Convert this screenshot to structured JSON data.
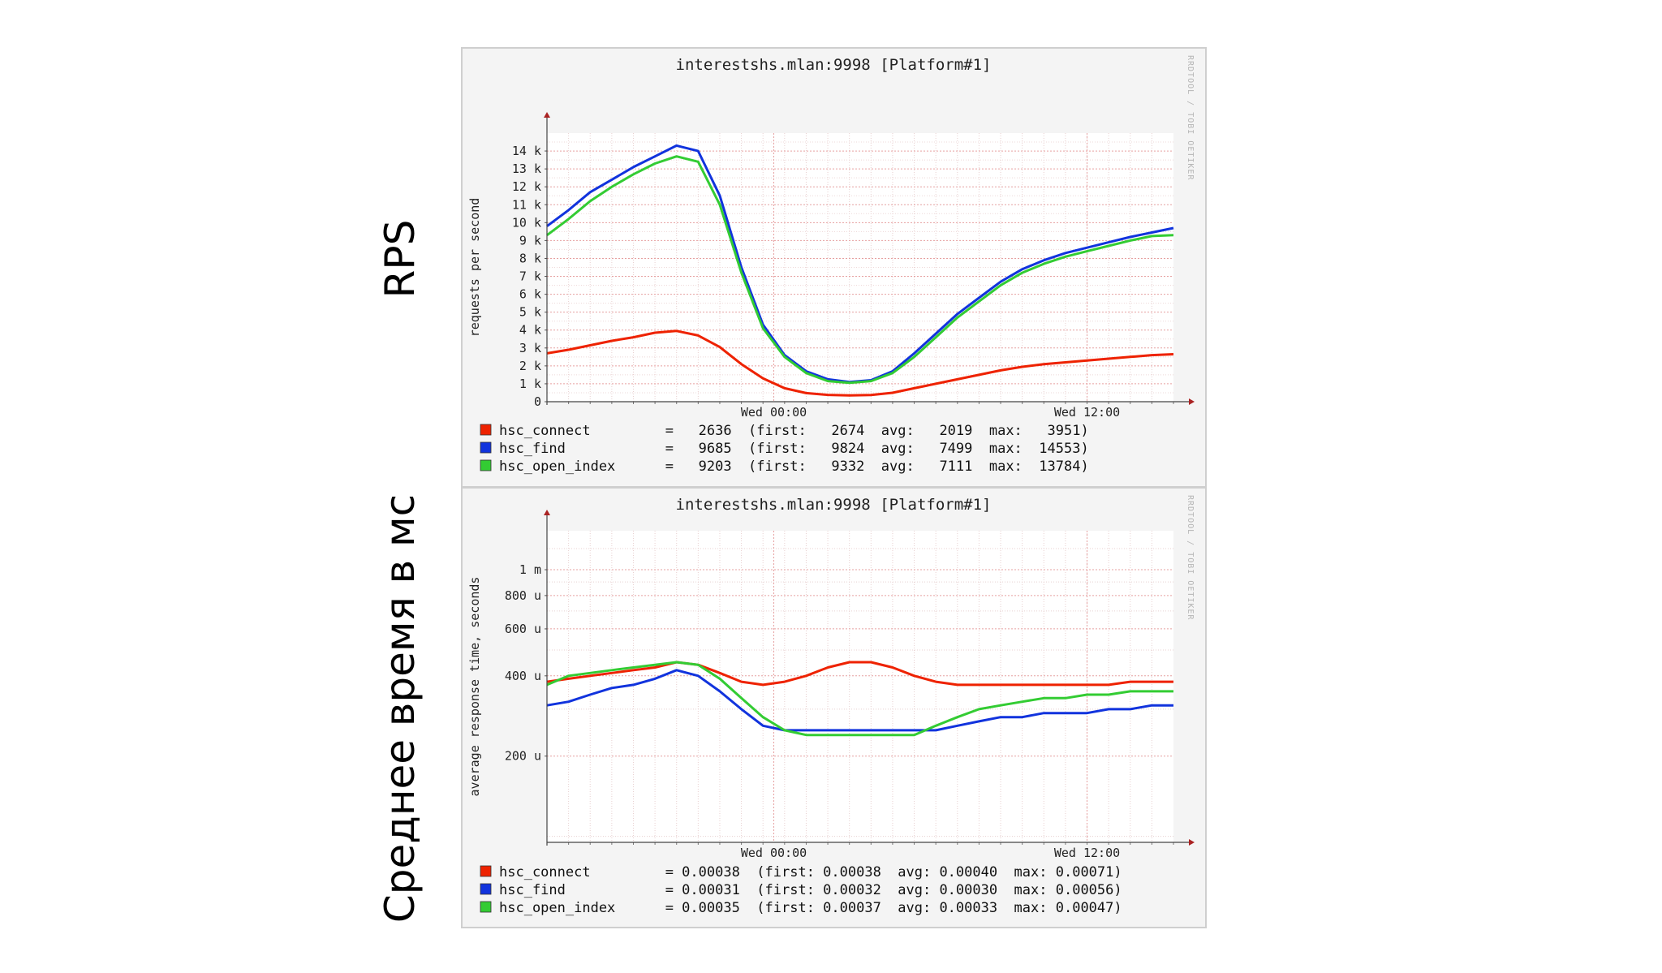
{
  "side_labels": {
    "top": "RPS",
    "bottom": "Среднее время в мс"
  },
  "watermark": "RRDTOOL / TOBI OETIKER",
  "colors": {
    "hsc_connect": "#ee2200",
    "hsc_find": "#1133dd",
    "hsc_open_index": "#33cc33"
  },
  "chart_data": [
    {
      "type": "line",
      "title": "interestshs.mlan:9998 [Platform#1]",
      "ylabel": "requests per second",
      "ylim": [
        0,
        15000
      ],
      "xlim": [
        0,
        29
      ],
      "ytick_values": [
        0,
        1000,
        2000,
        3000,
        4000,
        5000,
        6000,
        7000,
        8000,
        9000,
        10000,
        11000,
        12000,
        13000,
        14000
      ],
      "ytick_labels": [
        "0",
        "1 k",
        "2 k",
        "3 k",
        "4 k",
        "5 k",
        "6 k",
        "7 k",
        "8 k",
        "9 k",
        "10 k",
        "11 k",
        "12 k",
        "13 k",
        "14 k"
      ],
      "xtick_values": [
        10.5,
        25
      ],
      "xtick_labels": [
        "Wed 00:00",
        "Wed 12:00"
      ],
      "x": [
        0,
        1,
        2,
        3,
        4,
        5,
        6,
        7,
        8,
        9,
        10,
        11,
        12,
        13,
        14,
        15,
        16,
        17,
        18,
        19,
        20,
        21,
        22,
        23,
        24,
        25,
        26,
        27,
        28,
        29
      ],
      "series": [
        {
          "name": "hsc_connect",
          "color": "#ee2200",
          "values": [
            2700,
            2900,
            3150,
            3400,
            3600,
            3850,
            3950,
            3700,
            3050,
            2100,
            1300,
            750,
            480,
            380,
            350,
            370,
            500,
            750,
            1000,
            1250,
            1500,
            1750,
            1950,
            2100,
            2200,
            2300,
            2400,
            2500,
            2600,
            2650
          ],
          "legend": {
            "name": "hsc_connect",
            "current": "2636",
            "first": "2674",
            "avg": "2019",
            "max": "3951"
          }
        },
        {
          "name": "hsc_find",
          "color": "#1133dd",
          "values": [
            9800,
            10700,
            11700,
            12400,
            13100,
            13700,
            14300,
            14000,
            11500,
            7500,
            4300,
            2600,
            1700,
            1250,
            1100,
            1200,
            1700,
            2700,
            3800,
            4900,
            5800,
            6700,
            7400,
            7900,
            8300,
            8600,
            8900,
            9200,
            9450,
            9700
          ],
          "legend": {
            "name": "hsc_find",
            "current": "9685",
            "first": "9824",
            "avg": "7499",
            "max": "14553"
          }
        },
        {
          "name": "hsc_open_index",
          "color": "#33cc33",
          "values": [
            9300,
            10200,
            11200,
            12000,
            12700,
            13300,
            13700,
            13400,
            11000,
            7200,
            4100,
            2500,
            1600,
            1150,
            1050,
            1150,
            1600,
            2500,
            3600,
            4700,
            5600,
            6500,
            7200,
            7700,
            8100,
            8400,
            8700,
            9000,
            9250,
            9300
          ],
          "legend": {
            "name": "hsc_open_index",
            "current": "9203",
            "first": "9332",
            "avg": "7111",
            "max": "13784"
          }
        }
      ]
    },
    {
      "type": "line",
      "title": "interestshs.mlan:9998 [Platform#1]",
      "ylabel": "average response time, seconds",
      "ylim": [
        9.5e-05,
        0.0014
      ],
      "yscale": "log",
      "xlim": [
        0,
        29
      ],
      "ytick_values": [
        0.0002,
        0.0004,
        0.0006,
        0.0008,
        0.001
      ],
      "ytick_labels": [
        "200 u",
        "400 u",
        "600 u",
        "800 u",
        "1 m"
      ],
      "xtick_values": [
        10.5,
        25
      ],
      "xtick_labels": [
        "Wed 00:00",
        "Wed 12:00"
      ],
      "x": [
        0,
        1,
        2,
        3,
        4,
        5,
        6,
        7,
        8,
        9,
        10,
        11,
        12,
        13,
        14,
        15,
        16,
        17,
        18,
        19,
        20,
        21,
        22,
        23,
        24,
        25,
        26,
        27,
        28,
        29
      ],
      "series": [
        {
          "name": "hsc_connect",
          "color": "#ee2200",
          "values": [
            0.00038,
            0.00039,
            0.0004,
            0.00041,
            0.00042,
            0.00043,
            0.00045,
            0.00044,
            0.00041,
            0.00038,
            0.00037,
            0.00038,
            0.0004,
            0.00043,
            0.00045,
            0.00045,
            0.00043,
            0.0004,
            0.00038,
            0.00037,
            0.00037,
            0.00037,
            0.00037,
            0.00037,
            0.00037,
            0.00037,
            0.00037,
            0.00038,
            0.00038,
            0.00038
          ],
          "legend": {
            "name": "hsc_connect",
            "current": "0.00038",
            "first": "0.00038",
            "avg": "0.00040",
            "max": "0.00071"
          }
        },
        {
          "name": "hsc_find",
          "color": "#1133dd",
          "values": [
            0.00031,
            0.00032,
            0.00034,
            0.00036,
            0.00037,
            0.00039,
            0.00042,
            0.0004,
            0.00035,
            0.0003,
            0.00026,
            0.00025,
            0.00025,
            0.00025,
            0.00025,
            0.00025,
            0.00025,
            0.00025,
            0.00025,
            0.00026,
            0.00027,
            0.00028,
            0.00028,
            0.00029,
            0.00029,
            0.00029,
            0.0003,
            0.0003,
            0.00031,
            0.00031
          ],
          "legend": {
            "name": "hsc_find",
            "current": "0.00031",
            "first": "0.00032",
            "avg": "0.00030",
            "max": "0.00056"
          }
        },
        {
          "name": "hsc_open_index",
          "color": "#33cc33",
          "values": [
            0.00037,
            0.0004,
            0.00041,
            0.00042,
            0.00043,
            0.00044,
            0.00045,
            0.00044,
            0.00039,
            0.00033,
            0.00028,
            0.00025,
            0.00024,
            0.00024,
            0.00024,
            0.00024,
            0.00024,
            0.00024,
            0.00026,
            0.00028,
            0.0003,
            0.00031,
            0.00032,
            0.00033,
            0.00033,
            0.00034,
            0.00034,
            0.00035,
            0.00035,
            0.00035
          ],
          "legend": {
            "name": "hsc_open_index",
            "current": "0.00035",
            "first": "0.00037",
            "avg": "0.00033",
            "max": "0.00047"
          }
        }
      ]
    }
  ]
}
